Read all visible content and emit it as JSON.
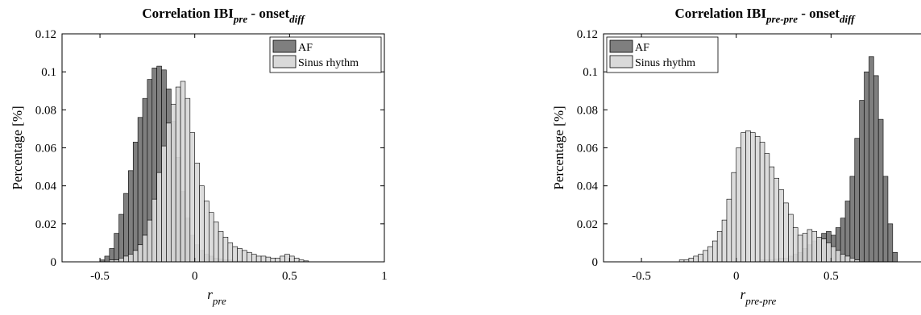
{
  "chart_data": [
    {
      "type": "histogram",
      "title": {
        "main": "Correlation IBI",
        "sub1": "pre",
        "mid": " - onset",
        "sub2": "diff"
      },
      "xlabel": {
        "main": "r",
        "sub": "pre"
      },
      "ylabel": "Percentage [%]",
      "xlim": [
        -0.7,
        1
      ],
      "ylim": [
        0,
        0.12
      ],
      "xticks": [
        -0.5,
        0,
        0.5,
        1
      ],
      "xtick_labels": [
        "-0.5",
        "0",
        "0.5",
        "1"
      ],
      "yticks": [
        0,
        0.02,
        0.04,
        0.06,
        0.08,
        0.1,
        0.12
      ],
      "ytick_labels": [
        "0",
        "0.02",
        "0.04",
        "0.06",
        "0.08",
        "0.1",
        "0.12"
      ],
      "legend_position": "top-right",
      "bin_width": 0.025,
      "series": [
        {
          "name": "AF",
          "color": "#7f7f7f",
          "bin_start": -0.5,
          "values": [
            0.001,
            0.003,
            0.007,
            0.015,
            0.025,
            0.036,
            0.048,
            0.063,
            0.076,
            0.086,
            0.096,
            0.102,
            0.103,
            0.101,
            0.091,
            0.074,
            0.055,
            0.037,
            0.023,
            0.014,
            0.009,
            0.006,
            0.004,
            0.003,
            0.002,
            0.0015,
            0.001,
            0.001,
            0.0005,
            0.0005
          ]
        },
        {
          "name": "Sinus rhythm",
          "color": "#d9d9d9",
          "bin_start": -0.45,
          "values": [
            0.001,
            0.001,
            0.002,
            0.003,
            0.004,
            0.006,
            0.009,
            0.014,
            0.022,
            0.033,
            0.047,
            0.061,
            0.073,
            0.083,
            0.092,
            0.095,
            0.086,
            0.068,
            0.052,
            0.04,
            0.032,
            0.026,
            0.021,
            0.016,
            0.013,
            0.01,
            0.008,
            0.007,
            0.006,
            0.005,
            0.004,
            0.003,
            0.003,
            0.0025,
            0.002,
            0.002,
            0.003,
            0.004,
            0.003,
            0.002,
            0.001,
            0.0005
          ]
        }
      ]
    },
    {
      "type": "histogram",
      "title": {
        "main": "Correlation IBI",
        "sub1": "pre-pre",
        "mid": " - onset",
        "sub2": "diff"
      },
      "xlabel": {
        "main": "r",
        "sub": "pre-pre"
      },
      "ylabel": "Percentage [%]",
      "xlim": [
        -0.7,
        1
      ],
      "ylim": [
        0,
        0.12
      ],
      "xticks": [
        -0.5,
        0,
        0.5
      ],
      "xtick_labels": [
        "-0.5",
        "0",
        "0.5"
      ],
      "yticks": [
        0,
        0.02,
        0.04,
        0.06,
        0.08,
        0.1,
        0.12
      ],
      "ytick_labels": [
        "0",
        "0.02",
        "0.04",
        "0.06",
        "0.08",
        "0.1",
        "0.12"
      ],
      "legend_position": "top-left",
      "bin_width": 0.025,
      "series": [
        {
          "name": "AF",
          "color": "#7f7f7f",
          "bin_start": 0.1,
          "values": [
            0.0005,
            0.001,
            0.001,
            0.001,
            0.0015,
            0.002,
            0.002,
            0.003,
            0.004,
            0.005,
            0.007,
            0.009,
            0.011,
            0.013,
            0.015,
            0.016,
            0.014,
            0.018,
            0.023,
            0.032,
            0.045,
            0.065,
            0.085,
            0.1,
            0.108,
            0.098,
            0.075,
            0.045,
            0.02,
            0.005
          ]
        },
        {
          "name": "Sinus rhythm",
          "color": "#d9d9d9",
          "bin_start": -0.3,
          "values": [
            0.001,
            0.001,
            0.002,
            0.003,
            0.004,
            0.006,
            0.008,
            0.011,
            0.016,
            0.022,
            0.033,
            0.047,
            0.06,
            0.068,
            0.069,
            0.068,
            0.066,
            0.063,
            0.057,
            0.05,
            0.044,
            0.038,
            0.031,
            0.025,
            0.018,
            0.014,
            0.015,
            0.017,
            0.016,
            0.013,
            0.012,
            0.01,
            0.008,
            0.006,
            0.004,
            0.003,
            0.002,
            0.001
          ]
        }
      ]
    }
  ]
}
